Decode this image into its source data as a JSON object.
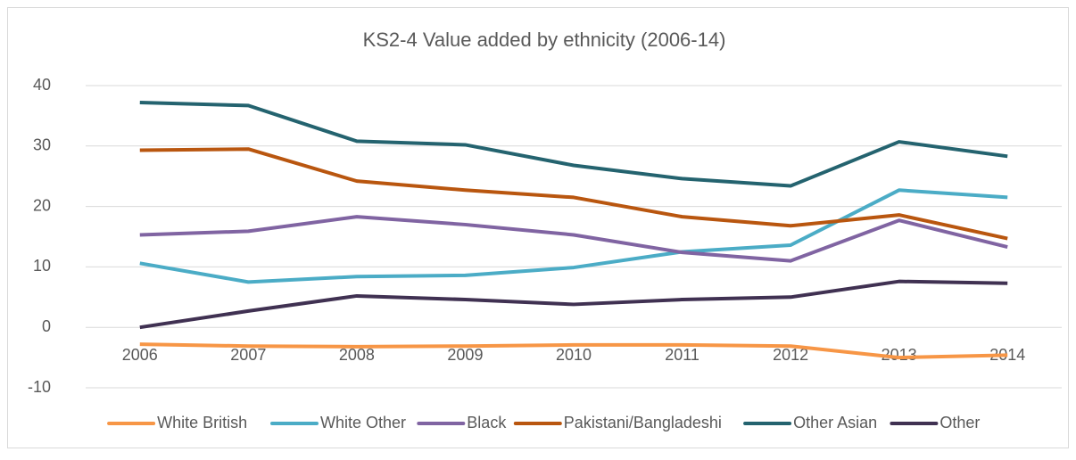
{
  "chart_data": {
    "type": "line",
    "title": "KS2-4 Value added by ethnicity (2006-14)",
    "categories": [
      "2006",
      "2007",
      "2008",
      "2009",
      "2010",
      "2011",
      "2012",
      "2013",
      "2014"
    ],
    "series": [
      {
        "name": "White British",
        "color": "#f79646",
        "values": [
          -2.8,
          -3.1,
          -3.2,
          -3.1,
          -2.9,
          -2.9,
          -3.1,
          -5.0,
          -4.6
        ]
      },
      {
        "name": "White Other",
        "color": "#4bacc6",
        "values": [
          10.6,
          7.5,
          8.4,
          8.6,
          9.9,
          12.5,
          13.6,
          22.7,
          21.5
        ]
      },
      {
        "name": "Black",
        "color": "#8064a2",
        "values": [
          15.3,
          15.9,
          18.3,
          17.0,
          15.3,
          12.4,
          11.0,
          17.7,
          13.3
        ]
      },
      {
        "name": "Pakistani/Bangladeshi",
        "color": "#b9560f",
        "values": [
          29.3,
          29.5,
          24.2,
          22.7,
          21.5,
          18.3,
          16.8,
          18.6,
          14.7
        ]
      },
      {
        "name": "Other Asian",
        "color": "#24636f",
        "values": [
          37.2,
          36.7,
          30.8,
          30.2,
          26.8,
          24.6,
          23.4,
          30.7,
          28.3
        ]
      },
      {
        "name": "Other",
        "color": "#403152",
        "values": [
          0,
          2.7,
          5.2,
          4.6,
          3.8,
          4.6,
          5.0,
          7.6,
          7.3
        ]
      }
    ],
    "ylim": [
      -10,
      40
    ],
    "yticks": [
      -10,
      0,
      10,
      20,
      30,
      40
    ],
    "grid": true,
    "legend": "bottom"
  }
}
